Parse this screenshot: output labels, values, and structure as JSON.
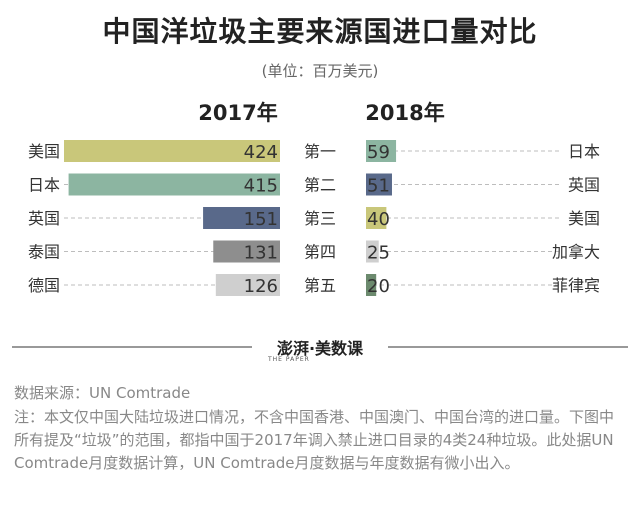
{
  "title": "中国洋垃圾主要来源国进口量对比",
  "unit": "(单位：百万美元)",
  "brand": {
    "name": "澎湃·美数课",
    "sub": "THE PAPER"
  },
  "source": "数据来源：UN Comtrade",
  "note": "注：本文仅中国大陆垃圾进口情况，不含中国香港、中国澳门、中国台湾的进口量。下图中所有提及“垃圾”的范围，都指中国于2017年调入禁止进口目录的4类24种垃圾。此处据UN Comtrade月度数据计算，UN Comtrade月度数据与年度数据有微小出入。",
  "chart_data": [
    {
      "type": "bar",
      "title": "2017年",
      "orientation": "horizontal-right-aligned",
      "categories": [
        "美国",
        "日本",
        "英国",
        "泰国",
        "德国"
      ],
      "values": [
        424,
        415,
        151,
        131,
        126
      ],
      "colors": [
        "#c9c77a",
        "#8cb5a1",
        "#59698a",
        "#8e8e8e",
        "#cfcfcf"
      ],
      "xlim": [
        0,
        424
      ]
    },
    {
      "type": "bar",
      "title": "2018年",
      "orientation": "horizontal-left-aligned",
      "categories": [
        "日本",
        "英国",
        "美国",
        "加拿大",
        "菲律宾"
      ],
      "values": [
        59,
        51,
        40,
        25,
        20
      ],
      "colors": [
        "#8cb5a1",
        "#59698a",
        "#c9c77a",
        "#cfcfcf",
        "#6c8a6e"
      ],
      "xlim": [
        0,
        424
      ]
    }
  ],
  "ranks": [
    "第一",
    "第二",
    "第三",
    "第四",
    "第五"
  ]
}
